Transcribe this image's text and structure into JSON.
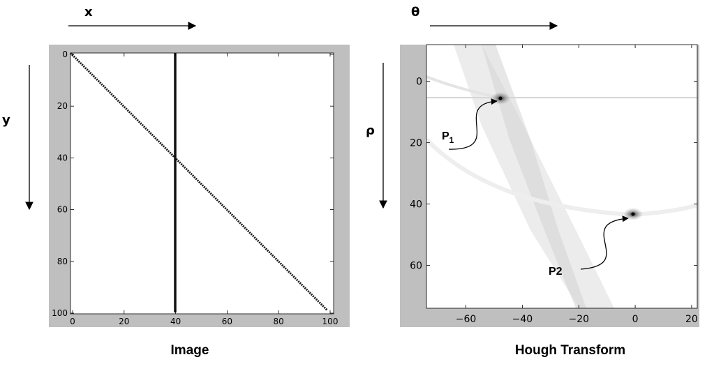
{
  "left_panel": {
    "x_axis_word": "x",
    "y_axis_word": "y",
    "caption": "Image",
    "x_ticks": [
      "0",
      "20",
      "40",
      "60",
      "80",
      "100"
    ],
    "y_ticks": [
      "0",
      "20",
      "40",
      "60",
      "80",
      "100"
    ]
  },
  "right_panel": {
    "theta_axis_word": "θ",
    "rho_axis_word": "ρ",
    "caption": "Hough Transform",
    "x_ticks": [
      "−60",
      "−40",
      "−20",
      "0",
      "20"
    ],
    "y_ticks": [
      "0",
      "20",
      "40",
      "60"
    ],
    "annotation_p1": "P",
    "annotation_p1_sub": "1",
    "annotation_p2": "P2"
  },
  "chart_data": [
    {
      "type": "heatmap",
      "title": "Image",
      "xlim": [
        0,
        100
      ],
      "ylim": [
        100,
        0
      ],
      "lines": [
        {
          "points": [
            [
              0,
              0
            ],
            [
              100,
              100
            ]
          ]
        },
        {
          "points": [
            [
              40,
              0
            ],
            [
              40,
              100
            ]
          ]
        }
      ]
    },
    {
      "type": "heatmap",
      "title": "Hough Transform",
      "xlim": [
        -74,
        22
      ],
      "ylim": [
        74,
        -12
      ],
      "peaks": [
        {
          "label": "P1",
          "theta": -45,
          "rho": 1
        },
        {
          "label": "P2",
          "theta": 0,
          "rho": 40
        }
      ]
    }
  ]
}
